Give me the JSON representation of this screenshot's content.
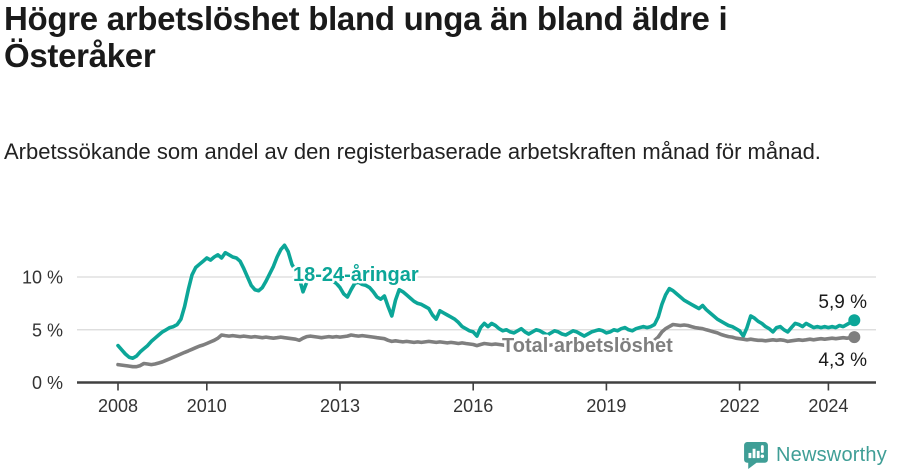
{
  "header": {
    "title": "Högre arbetslöshet bland unga än bland äldre i Österåker",
    "subtitle": "Arbetssökande som andel av den registerbaserade arbetskraften månad för månad."
  },
  "footer": {
    "brand": "Newsworthy"
  },
  "colors": {
    "youth_line": "#0ca698",
    "total_line": "#7f7f7f",
    "grid": "#d9d9d9",
    "axis": "#404040",
    "tick_text": "#333333",
    "value_text": "#1a1a1a",
    "brand_teal": "#3f9e96"
  },
  "chart_data": {
    "type": "line",
    "title": "Högre arbetslöshet bland unga än bland äldre i Österåker",
    "subtitle": "Arbetssökande som andel av den registerbaserade arbetskraften månad för månad.",
    "unit": "%",
    "xlabel": "",
    "ylabel": "",
    "grid": true,
    "legend_position": "inline",
    "xlim": [
      2007.7,
      2025.1
    ],
    "ylim": [
      0,
      13.5
    ],
    "x_start_year": 2008,
    "interval": "monthly",
    "y_ticks": [
      {
        "value": 0,
        "label": "0 %"
      },
      {
        "value": 5,
        "label": "5 %"
      },
      {
        "value": 10,
        "label": "10 %"
      }
    ],
    "x_ticks": [
      {
        "year": 2008,
        "label": "2008"
      },
      {
        "year": 2010,
        "label": "2010"
      },
      {
        "year": 2013,
        "label": "2013"
      },
      {
        "year": 2016,
        "label": "2016"
      },
      {
        "year": 2019,
        "label": "2019"
      },
      {
        "year": 2022,
        "label": "2022"
      },
      {
        "year": 2024,
        "label": "2024"
      }
    ],
    "series": [
      {
        "name": "18-24-åringar",
        "color": "#0ca698",
        "end_label": "5,9 %",
        "end_value": 5.9,
        "values": [
          3.5,
          3.1,
          2.7,
          2.4,
          2.3,
          2.5,
          2.9,
          3.2,
          3.5,
          3.9,
          4.2,
          4.5,
          4.8,
          5.0,
          5.2,
          5.3,
          5.5,
          6.0,
          7.2,
          8.8,
          10.2,
          10.9,
          11.2,
          11.5,
          11.8,
          11.6,
          11.9,
          12.1,
          11.8,
          12.3,
          12.1,
          11.9,
          11.8,
          11.5,
          10.8,
          10.0,
          9.2,
          8.8,
          8.7,
          9.0,
          9.6,
          10.3,
          11.0,
          11.9,
          12.6,
          13.0,
          12.4,
          11.2,
          10.6,
          9.9,
          8.6,
          9.5,
          10.0,
          10.1,
          10.0,
          9.9,
          10.0,
          9.8,
          9.6,
          9.4,
          9.0,
          8.4,
          8.1,
          8.8,
          9.4,
          9.5,
          9.3,
          9.2,
          9.0,
          8.6,
          8.1,
          7.9,
          8.2,
          7.2,
          6.3,
          7.8,
          8.8,
          8.6,
          8.3,
          8.0,
          7.7,
          7.5,
          7.4,
          7.2,
          7.0,
          6.4,
          6.0,
          6.8,
          6.6,
          6.4,
          6.2,
          6.0,
          5.7,
          5.3,
          5.1,
          4.9,
          4.8,
          4.4,
          5.2,
          5.6,
          5.3,
          5.6,
          5.4,
          5.1,
          4.9,
          5.0,
          4.8,
          4.7,
          4.9,
          5.1,
          4.8,
          4.6,
          4.8,
          5.0,
          4.9,
          4.7,
          4.5,
          4.7,
          4.9,
          4.8,
          4.6,
          4.5,
          4.7,
          4.9,
          4.8,
          4.6,
          4.4,
          4.6,
          4.8,
          4.9,
          5.0,
          4.9,
          4.7,
          4.8,
          5.0,
          4.9,
          5.1,
          5.2,
          5.0,
          4.9,
          5.1,
          5.2,
          5.3,
          5.2,
          5.3,
          5.5,
          6.2,
          7.4,
          8.3,
          8.9,
          8.7,
          8.4,
          8.1,
          7.8,
          7.6,
          7.4,
          7.2,
          7.0,
          7.3,
          6.9,
          6.6,
          6.3,
          6.0,
          5.8,
          5.6,
          5.4,
          5.3,
          5.1,
          4.9,
          4.4,
          5.2,
          6.3,
          6.1,
          5.8,
          5.6,
          5.3,
          5.1,
          4.8,
          5.2,
          5.3,
          5.0,
          4.8,
          5.2,
          5.6,
          5.5,
          5.3,
          5.6,
          5.4,
          5.2,
          5.3,
          5.2,
          5.3,
          5.2,
          5.3,
          5.2,
          5.4,
          5.3,
          5.5,
          5.7,
          5.9
        ]
      },
      {
        "name": "Total arbetslöshet",
        "color": "#7f7f7f",
        "end_label": "4,3 %",
        "end_value": 4.3,
        "values": [
          1.7,
          1.65,
          1.6,
          1.55,
          1.5,
          1.5,
          1.6,
          1.8,
          1.75,
          1.7,
          1.75,
          1.85,
          1.95,
          2.1,
          2.25,
          2.4,
          2.55,
          2.7,
          2.85,
          3.0,
          3.15,
          3.3,
          3.45,
          3.55,
          3.7,
          3.85,
          4.0,
          4.2,
          4.5,
          4.45,
          4.4,
          4.45,
          4.4,
          4.35,
          4.4,
          4.35,
          4.3,
          4.35,
          4.3,
          4.25,
          4.3,
          4.25,
          4.2,
          4.25,
          4.3,
          4.25,
          4.2,
          4.15,
          4.1,
          4.0,
          4.2,
          4.35,
          4.4,
          4.35,
          4.3,
          4.25,
          4.3,
          4.35,
          4.3,
          4.35,
          4.3,
          4.35,
          4.4,
          4.5,
          4.45,
          4.4,
          4.45,
          4.4,
          4.35,
          4.3,
          4.25,
          4.2,
          4.15,
          4.0,
          3.9,
          3.95,
          3.9,
          3.85,
          3.9,
          3.85,
          3.8,
          3.85,
          3.8,
          3.85,
          3.9,
          3.85,
          3.8,
          3.85,
          3.8,
          3.75,
          3.8,
          3.75,
          3.7,
          3.75,
          3.7,
          3.65,
          3.6,
          3.5,
          3.6,
          3.7,
          3.65,
          3.6,
          3.65,
          3.6,
          3.55,
          3.5,
          3.55,
          3.5,
          3.5,
          3.55,
          3.6,
          3.55,
          3.6,
          3.65,
          3.6,
          3.55,
          3.5,
          3.55,
          3.6,
          3.55,
          3.5,
          3.55,
          3.5,
          3.55,
          3.6,
          3.55,
          3.5,
          3.55,
          3.6,
          3.55,
          3.5,
          3.55,
          3.5,
          3.55,
          3.6,
          3.65,
          3.6,
          3.65,
          3.7,
          3.65,
          3.7,
          3.75,
          3.8,
          3.85,
          3.9,
          4.0,
          4.3,
          4.8,
          5.1,
          5.3,
          5.5,
          5.45,
          5.4,
          5.45,
          5.4,
          5.3,
          5.2,
          5.15,
          5.1,
          5.0,
          4.9,
          4.8,
          4.7,
          4.55,
          4.45,
          4.35,
          4.3,
          4.2,
          4.15,
          4.1,
          4.05,
          4.1,
          4.05,
          4.0,
          4.0,
          3.95,
          4.0,
          4.05,
          4.0,
          4.05,
          4.0,
          3.9,
          3.95,
          4.0,
          4.05,
          4.0,
          4.05,
          4.1,
          4.05,
          4.1,
          4.15,
          4.1,
          4.15,
          4.2,
          4.15,
          4.2,
          4.25,
          4.2,
          4.25,
          4.3
        ]
      }
    ]
  }
}
